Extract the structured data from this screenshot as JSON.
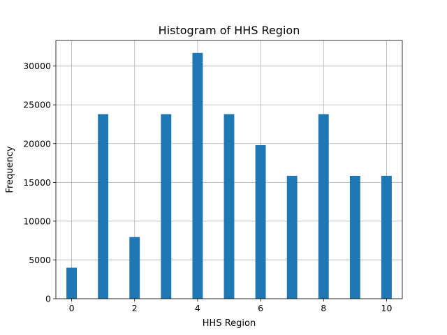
{
  "chart_data": {
    "type": "bar",
    "title": "Histogram of HHS Region",
    "xlabel": "HHS Region",
    "ylabel": "Frequency",
    "xlim": [
      -0.5,
      10.5
    ],
    "ylim": [
      0,
      33300
    ],
    "xticks": [
      0,
      2,
      4,
      6,
      8,
      10
    ],
    "yticks": [
      0,
      5000,
      10000,
      15000,
      20000,
      25000,
      30000
    ],
    "grid": true,
    "bar_color": "#1f77b4",
    "bins": [
      {
        "x": 0,
        "value": 4000
      },
      {
        "x": 1,
        "value": 23800
      },
      {
        "x": 2,
        "value": 7950
      },
      {
        "x": 3,
        "value": 23800
      },
      {
        "x": 4,
        "value": 31700
      },
      {
        "x": 5,
        "value": 23800
      },
      {
        "x": 6,
        "value": 19800
      },
      {
        "x": 7,
        "value": 15850
      },
      {
        "x": 8,
        "value": 23800
      },
      {
        "x": 9,
        "value": 15850
      },
      {
        "x": 10,
        "value": 15850
      }
    ]
  }
}
